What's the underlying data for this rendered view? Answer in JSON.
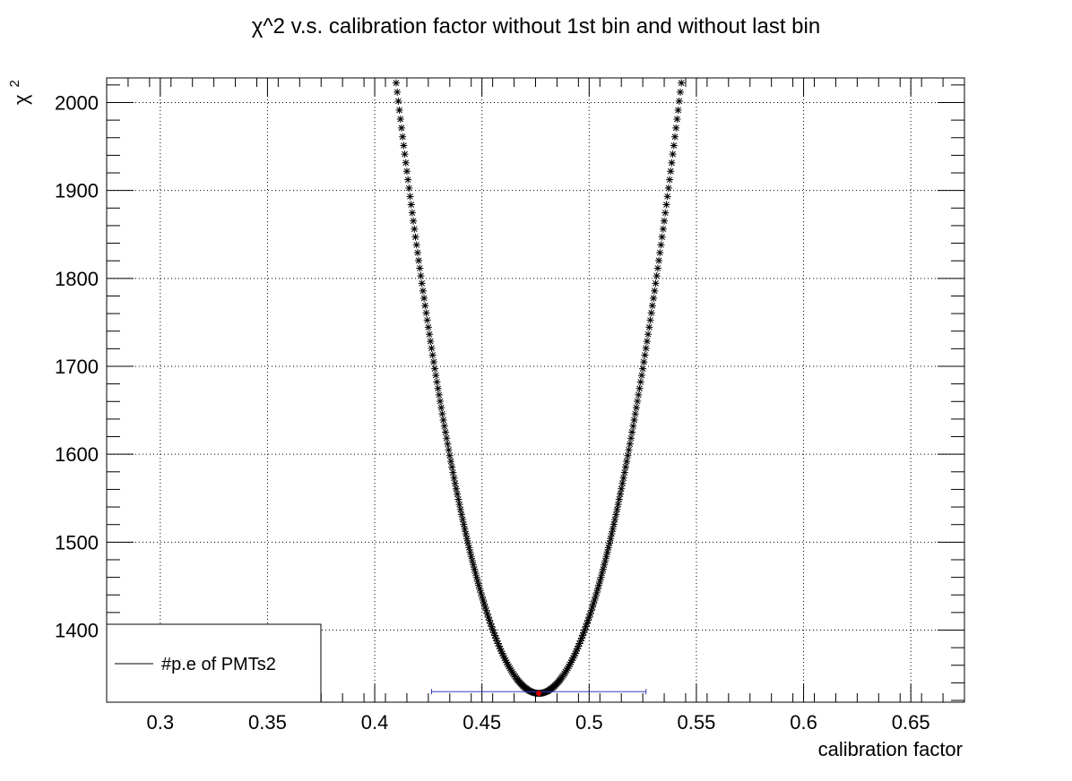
{
  "chart_data": {
    "type": "scatter",
    "title": "χ^2 v.s. calibration factor without 1st bin and without last bin",
    "xlabel": "calibration factor",
    "ylabel": "χ",
    "ylabel_superscript": "2",
    "xlim": [
      0.275,
      0.675
    ],
    "ylim": [
      1318,
      2028
    ],
    "x_ticks": [
      0.3,
      0.35,
      0.4,
      0.45,
      0.5,
      0.55,
      0.6,
      0.65
    ],
    "x_tick_labels": [
      "0.3",
      "0.35",
      "0.4",
      "0.45",
      "0.5",
      "0.55",
      "0.6",
      "0.65"
    ],
    "y_ticks": [
      1400,
      1500,
      1600,
      1700,
      1800,
      1900,
      2000
    ],
    "y_tick_labels": [
      "1400",
      "1500",
      "1600",
      "1700",
      "1800",
      "1900",
      "2000"
    ],
    "grid": true,
    "legend": {
      "position": "bottom-left",
      "entries": [
        "#p.e of PMTs2"
      ]
    },
    "series": [
      {
        "name": "#p.e of PMTs2",
        "marker": "star",
        "color": "#000000",
        "model": {
          "type": "parabola",
          "x_min": 0.4765,
          "y_min": 1328,
          "curvature": 157000
        },
        "x_range": [
          0.409,
          0.548
        ],
        "x_step": 0.0005
      }
    ],
    "minimum_marker": {
      "x": 0.4765,
      "y": 1328,
      "color": "#cc0000"
    },
    "error_bar": {
      "y": 1329,
      "x_low": 0.4265,
      "x_high": 0.5265,
      "color": "#3b3bbf"
    }
  }
}
